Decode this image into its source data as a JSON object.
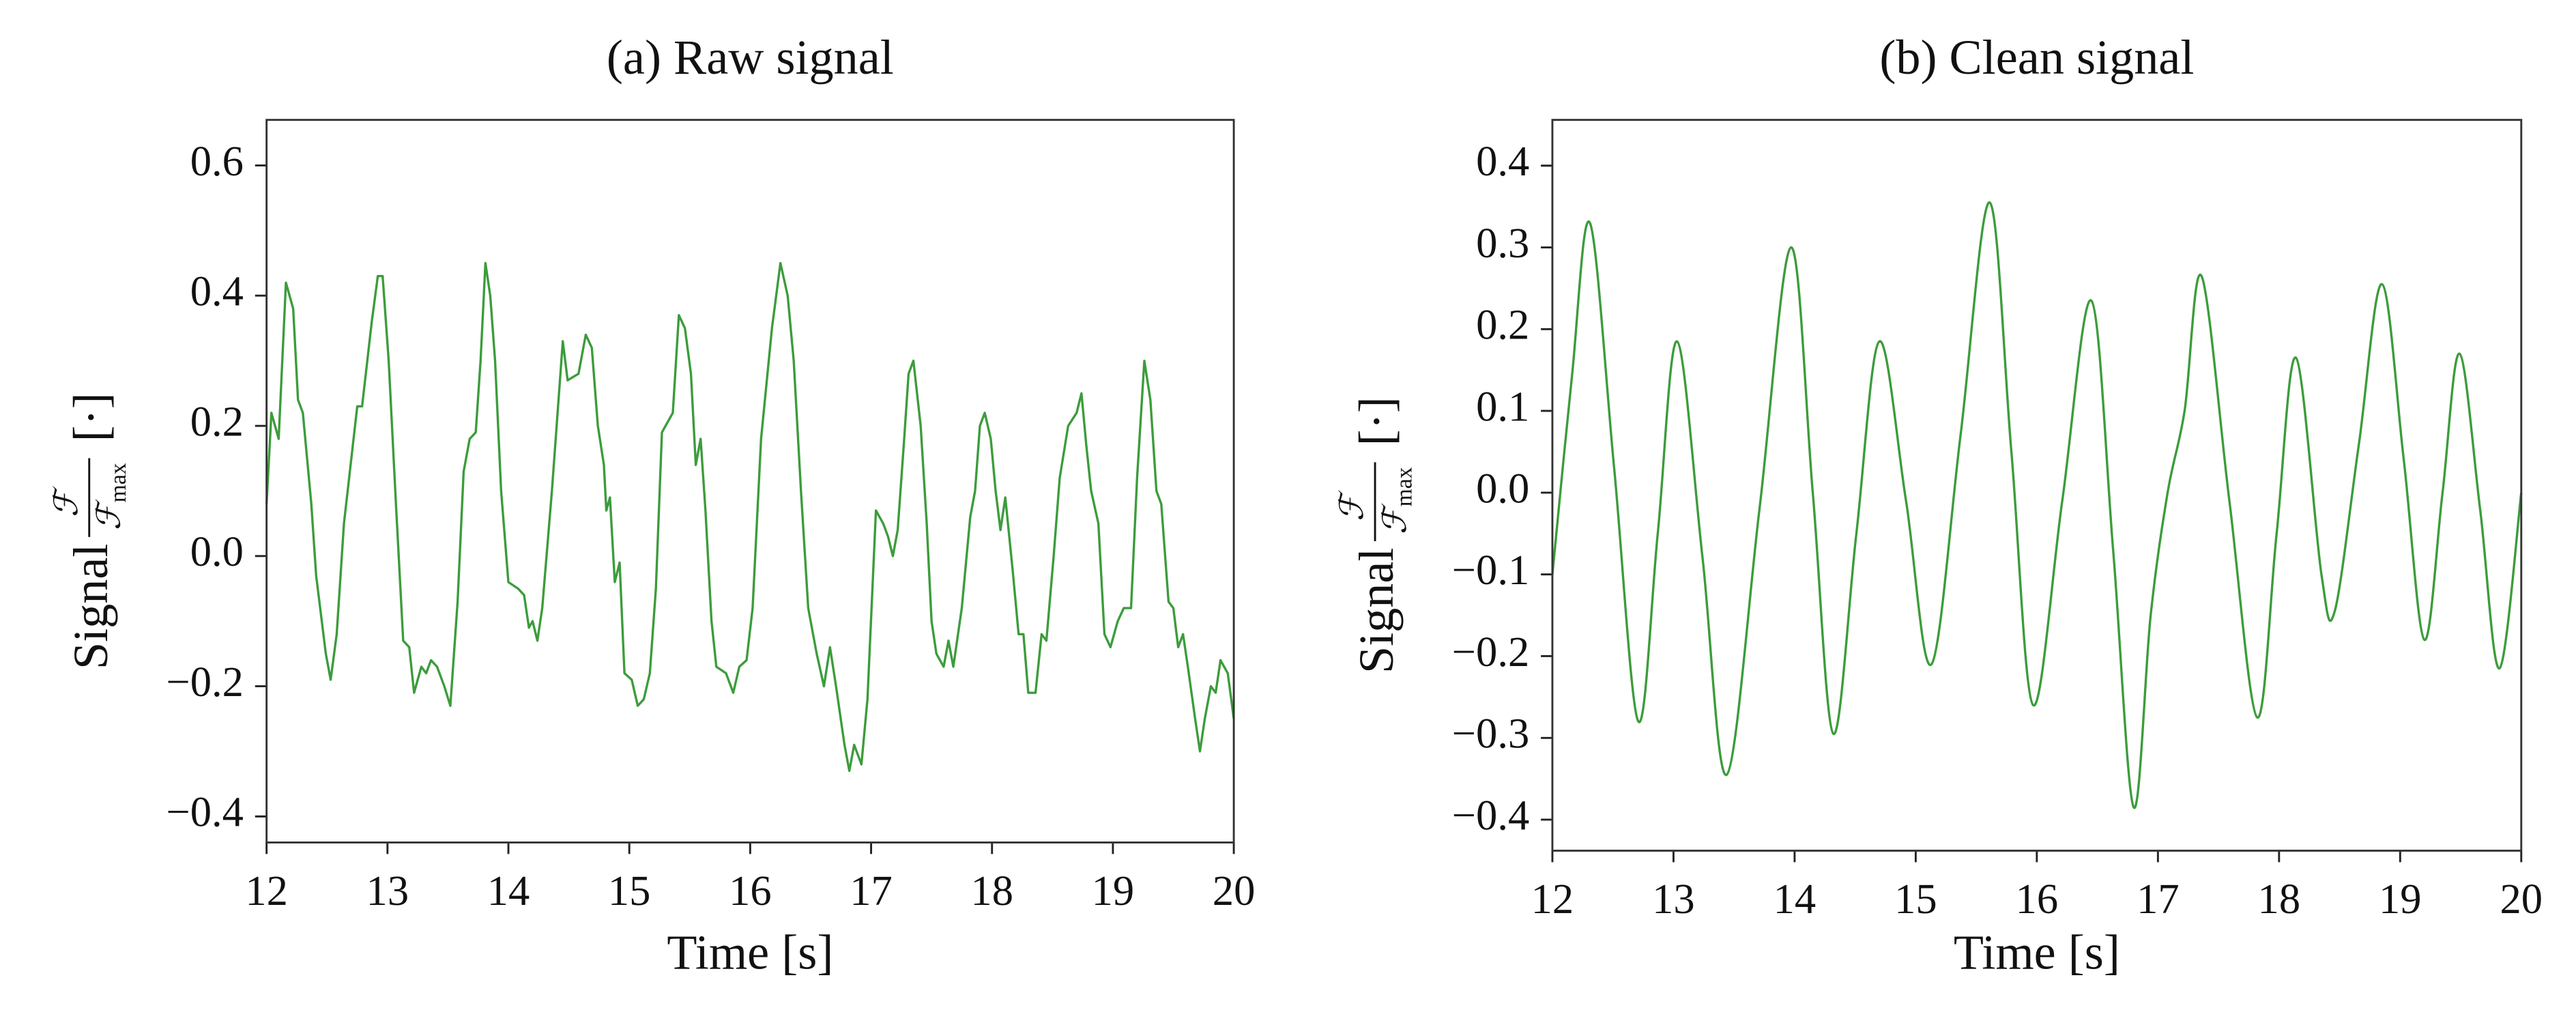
{
  "chart_data": [
    {
      "type": "line",
      "title": "(a) Raw signal",
      "xlabel": "Time [s]",
      "ylabel": "Signal",
      "ylabel_fraction": {
        "numerator": "ℱ",
        "denominator": "ℱ",
        "denominator_sub": "max"
      },
      "ylabel_unit": "[·]",
      "x": [
        12.0,
        12.04,
        12.1,
        12.16,
        12.22,
        12.26,
        12.3,
        12.37,
        12.41,
        12.49,
        12.53,
        12.58,
        12.64,
        12.75,
        12.79,
        12.87,
        12.92,
        12.96,
        13.01,
        13.07,
        13.13,
        13.18,
        13.22,
        13.28,
        13.32,
        13.36,
        13.41,
        13.47,
        13.52,
        13.58,
        13.63,
        13.68,
        13.73,
        13.77,
        13.81,
        13.85,
        13.89,
        13.94,
        14.0,
        14.08,
        14.13,
        14.17,
        14.2,
        14.24,
        14.28,
        14.36,
        14.45,
        14.49,
        14.58,
        14.64,
        14.69,
        14.74,
        14.79,
        14.81,
        14.84,
        14.88,
        14.92,
        14.96,
        15.02,
        15.07,
        15.12,
        15.17,
        15.22,
        15.27,
        15.36,
        15.41,
        15.46,
        15.51,
        15.55,
        15.59,
        15.63,
        15.68,
        15.72,
        15.8,
        15.86,
        15.91,
        15.97,
        16.02,
        16.09,
        16.18,
        16.25,
        16.31,
        16.36,
        16.42,
        16.48,
        16.55,
        16.61,
        16.66,
        16.71,
        16.78,
        16.82,
        16.86,
        16.92,
        16.97,
        17.04,
        17.1,
        17.14,
        17.18,
        17.22,
        17.27,
        17.31,
        17.35,
        17.41,
        17.46,
        17.5,
        17.54,
        17.6,
        17.64,
        17.68,
        17.75,
        17.82,
        17.86,
        17.9,
        17.94,
        17.99,
        18.03,
        18.07,
        18.11,
        18.17,
        18.22,
        18.26,
        18.3,
        18.36,
        18.41,
        18.45,
        18.51,
        18.56,
        18.63,
        18.7,
        18.74,
        18.78,
        18.82,
        18.88,
        18.93,
        18.98,
        19.04,
        19.09,
        19.15,
        19.2,
        19.26,
        19.31,
        19.36,
        19.4,
        19.46,
        19.5,
        19.54,
        19.58,
        19.62,
        19.68,
        19.72,
        19.76,
        19.81,
        19.85,
        19.89,
        19.95,
        20.0
      ],
      "series": [
        {
          "color": "#3c9c3c",
          "values": [
            0.08,
            0.22,
            0.18,
            0.42,
            0.38,
            0.24,
            0.22,
            0.08,
            -0.03,
            -0.15,
            -0.19,
            -0.12,
            0.05,
            0.23,
            0.23,
            0.36,
            0.43,
            0.43,
            0.3,
            0.08,
            -0.13,
            -0.14,
            -0.21,
            -0.17,
            -0.18,
            -0.16,
            -0.17,
            -0.2,
            -0.23,
            -0.07,
            0.13,
            0.18,
            0.19,
            0.3,
            0.45,
            0.4,
            0.3,
            0.1,
            -0.04,
            -0.05,
            -0.06,
            -0.11,
            -0.1,
            -0.13,
            -0.08,
            0.1,
            0.33,
            0.27,
            0.28,
            0.34,
            0.32,
            0.2,
            0.14,
            0.07,
            0.09,
            -0.04,
            -0.01,
            -0.18,
            -0.19,
            -0.23,
            -0.22,
            -0.18,
            -0.05,
            0.19,
            0.22,
            0.37,
            0.35,
            0.28,
            0.14,
            0.18,
            0.07,
            -0.1,
            -0.17,
            -0.18,
            -0.21,
            -0.17,
            -0.16,
            -0.08,
            0.18,
            0.35,
            0.45,
            0.4,
            0.3,
            0.1,
            -0.08,
            -0.15,
            -0.2,
            -0.14,
            -0.2,
            -0.29,
            -0.33,
            -0.29,
            -0.32,
            -0.22,
            0.07,
            0.05,
            0.03,
            0.0,
            0.04,
            0.17,
            0.28,
            0.3,
            0.2,
            0.05,
            -0.1,
            -0.15,
            -0.17,
            -0.13,
            -0.17,
            -0.08,
            0.06,
            0.1,
            0.2,
            0.22,
            0.18,
            0.1,
            0.04,
            0.09,
            -0.02,
            -0.12,
            -0.12,
            -0.21,
            -0.21,
            -0.12,
            -0.13,
            0.0,
            0.12,
            0.2,
            0.22,
            0.25,
            0.17,
            0.1,
            0.05,
            -0.12,
            -0.14,
            -0.1,
            -0.08,
            -0.08,
            0.12,
            0.3,
            0.24,
            0.1,
            0.08,
            -0.07,
            -0.08,
            -0.14,
            -0.12,
            -0.17,
            -0.25,
            -0.3,
            -0.25,
            -0.2,
            -0.21,
            -0.16,
            -0.18,
            -0.25
          ]
        }
      ],
      "xlim": [
        12,
        20
      ],
      "xticks": [
        12,
        13,
        14,
        15,
        16,
        17,
        18,
        19,
        20
      ],
      "ylim": [
        -0.44,
        0.67
      ],
      "yticks": [
        {
          "value": -0.4,
          "label": "−0.4"
        },
        {
          "value": -0.2,
          "label": "−0.2"
        },
        {
          "value": 0,
          "label": "0.0"
        },
        0.2,
        0.4,
        0.6
      ],
      "grid": false
    },
    {
      "type": "line",
      "title": "(b) Clean signal",
      "xlabel": "Time [s]",
      "ylabel": "Signal",
      "ylabel_fraction": {
        "numerator": "ℱ",
        "denominator": "ℱ",
        "denominator_sub": "max"
      },
      "ylabel_unit": "[·]",
      "x": [
        12.0,
        12.16,
        12.31,
        12.51,
        12.71,
        12.87,
        13.03,
        13.24,
        13.44,
        13.71,
        13.97,
        14.15,
        14.32,
        14.51,
        14.7,
        14.92,
        15.13,
        15.37,
        15.61,
        15.79,
        15.97,
        16.21,
        16.45,
        16.63,
        16.8,
        16.94,
        17.08,
        17.22,
        17.36,
        17.59,
        17.82,
        17.98,
        18.14,
        18.35,
        18.46,
        18.66,
        18.85,
        19.03,
        19.2,
        19.35,
        19.49,
        19.66,
        19.82,
        20.0
      ],
      "series": [
        {
          "color": "#3c9c3c",
          "values": [
            -0.1,
            0.14,
            0.33,
            0.03,
            -0.28,
            -0.05,
            0.185,
            -0.08,
            -0.345,
            -0.02,
            0.3,
            0.0,
            -0.295,
            -0.05,
            0.185,
            -0.01,
            -0.21,
            0.07,
            0.355,
            0.05,
            -0.26,
            -0.01,
            0.235,
            -0.07,
            -0.385,
            -0.15,
            0.0,
            0.1,
            0.265,
            -0.01,
            -0.275,
            -0.05,
            0.165,
            -0.1,
            -0.145,
            0.06,
            0.255,
            0.04,
            -0.18,
            0.0,
            0.17,
            -0.02,
            -0.215,
            0.0
          ]
        }
      ],
      "xlim": [
        12,
        20
      ],
      "xticks": [
        12,
        13,
        14,
        15,
        16,
        17,
        18,
        19,
        20
      ],
      "ylim": [
        -0.438,
        0.456
      ],
      "yticks": [
        {
          "value": -0.4,
          "label": "−0.4"
        },
        {
          "value": -0.3,
          "label": "−0.3"
        },
        {
          "value": -0.2,
          "label": "−0.2"
        },
        {
          "value": -0.1,
          "label": "−0.1"
        },
        {
          "value": 0,
          "label": "0.0"
        },
        0.1,
        0.2,
        0.3,
        0.4
      ],
      "grid": false
    }
  ]
}
